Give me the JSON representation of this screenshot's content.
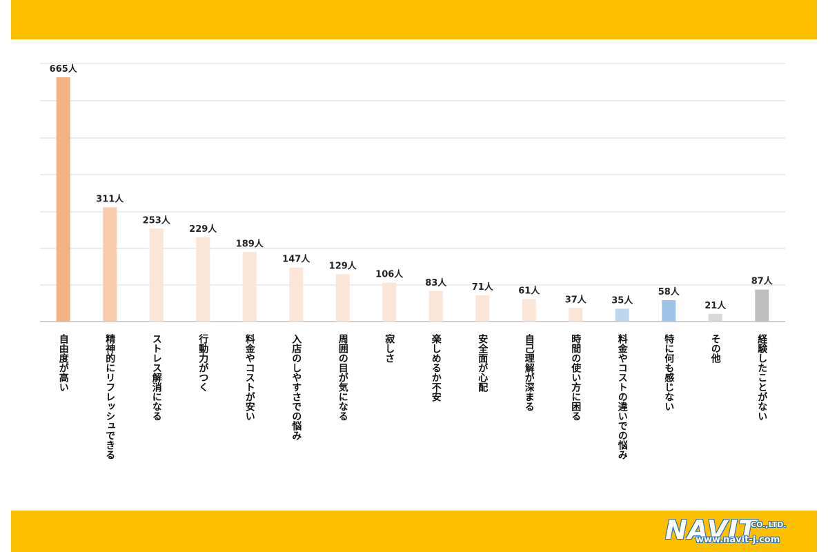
{
  "colors": {
    "band": "#fcc000",
    "grid": "#d9d9d9"
  },
  "logo": {
    "name": "NAVIT",
    "suffix": "CO.,LTD.",
    "url": "www.navit-j.com"
  },
  "chart_data": {
    "type": "bar",
    "ylim": [
      0,
      665
    ],
    "grid": true,
    "unit_suffix": "人",
    "categories": [
      "自由度が高い",
      "精神的にリフレッシュできる",
      "ストレス解消になる",
      "行動力がつく",
      "料金やコストが安い",
      "入店のしやすさでの悩み",
      "周囲の目が気になる",
      "寂しさ",
      "楽しめるか不安",
      "安全面が心配",
      "自己理解が深まる",
      "時間の使い方に困る",
      "料金やコストの違いでの悩み",
      "特に何も感じない",
      "その他",
      "経験したことがない"
    ],
    "values": [
      665,
      311,
      253,
      229,
      189,
      147,
      129,
      106,
      83,
      71,
      61,
      37,
      35,
      58,
      21,
      87
    ],
    "value_labels": [
      "665人",
      "311人",
      "253人",
      "229人",
      "189人",
      "147人",
      "129人",
      "106人",
      "83人",
      "71人",
      "61人",
      "37人",
      "35人",
      "58人",
      "21人",
      "87人"
    ],
    "bar_colors": [
      "#f4b183",
      "#f8cbad",
      "#fbe5d6",
      "#fbe5d6",
      "#fbe5d6",
      "#fbe5d6",
      "#fbe5d6",
      "#fbe5d6",
      "#fbe5d6",
      "#fbe5d6",
      "#fbe5d6",
      "#fbe5d6",
      "#bdd7ee",
      "#9dc3e6",
      "#d9d9d9",
      "#bfbfbf"
    ]
  }
}
